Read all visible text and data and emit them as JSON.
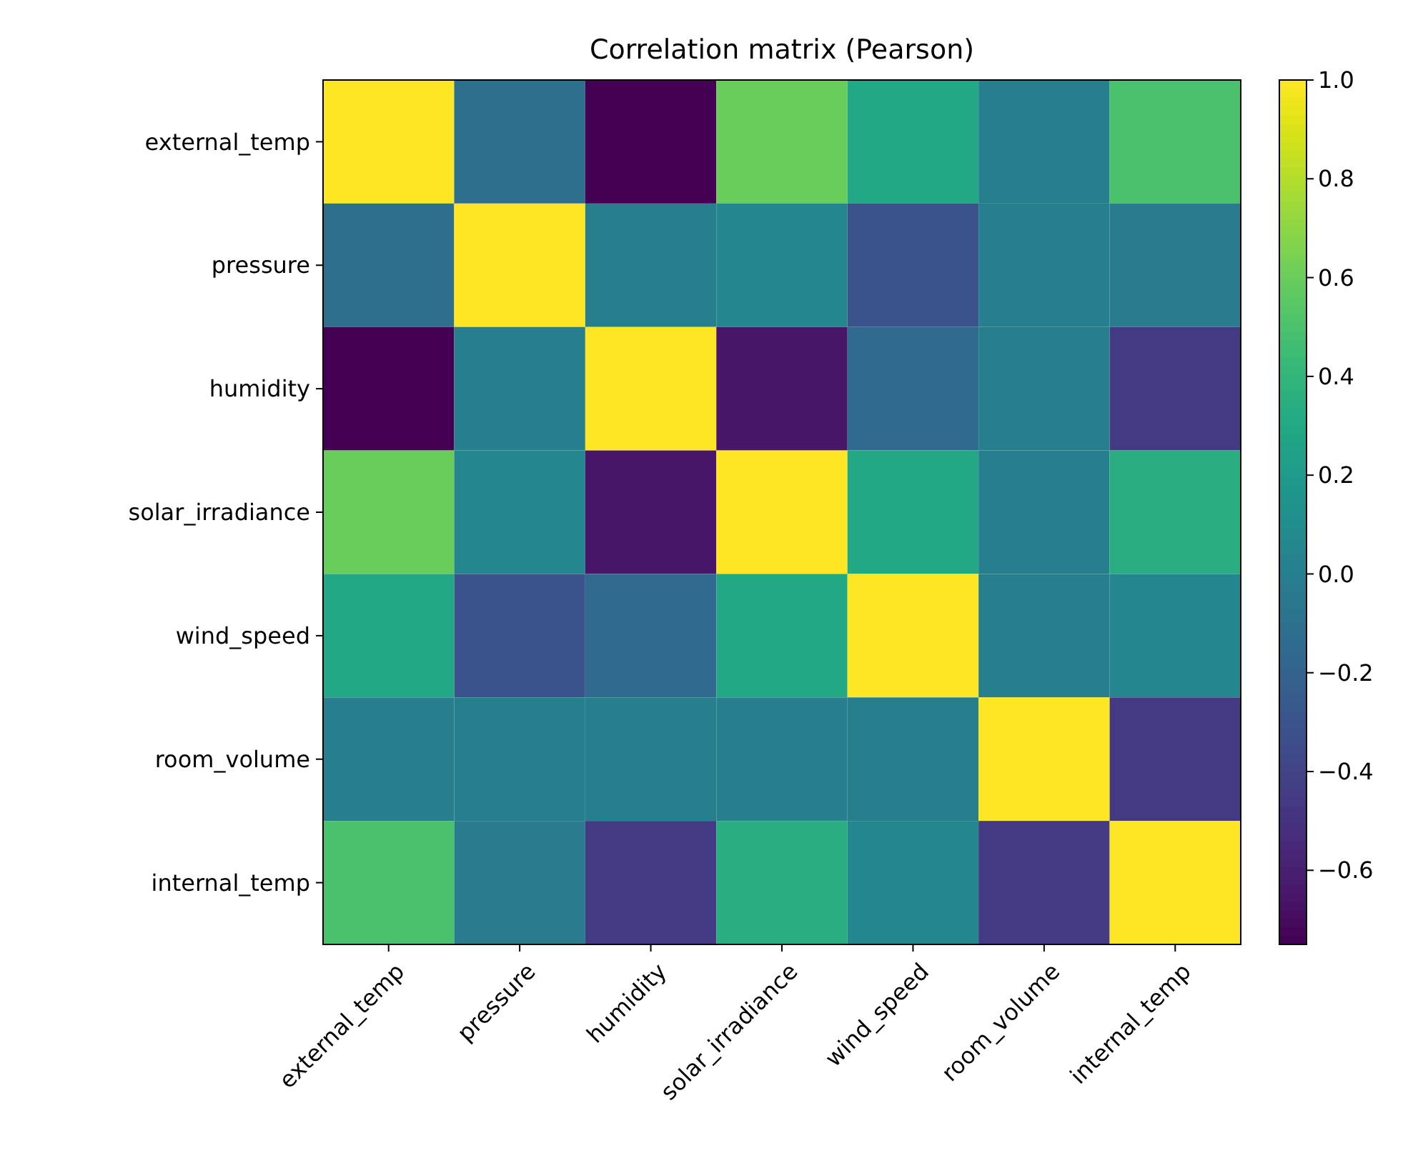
{
  "chart_data": {
    "type": "heatmap",
    "title": "Correlation matrix (Pearson)",
    "categories": [
      "external_temp",
      "pressure",
      "humidity",
      "solar_irradiance",
      "wind_speed",
      "room_volume",
      "internal_temp"
    ],
    "y_categories": [
      "external_temp",
      "pressure",
      "humidity",
      "solar_irradiance",
      "wind_speed",
      "room_volume",
      "internal_temp"
    ],
    "cells": [
      [
        1.0,
        -0.12,
        -0.75,
        0.6,
        0.3,
        0.0,
        0.5
      ],
      [
        -0.12,
        1.0,
        0.0,
        0.05,
        -0.3,
        0.0,
        -0.02
      ],
      [
        -0.75,
        0.0,
        1.0,
        -0.65,
        -0.15,
        0.0,
        -0.45
      ],
      [
        0.6,
        0.05,
        -0.65,
        1.0,
        0.3,
        0.0,
        0.35
      ],
      [
        0.3,
        -0.3,
        -0.15,
        0.3,
        1.0,
        0.0,
        0.05
      ],
      [
        0.0,
        0.0,
        0.0,
        0.0,
        0.0,
        1.0,
        -0.45
      ],
      [
        0.5,
        -0.02,
        -0.45,
        0.35,
        0.05,
        -0.45,
        1.0
      ]
    ],
    "clim": [
      -0.75,
      1.0
    ],
    "cticks": [
      {
        "value": 1.0,
        "label": "1.0"
      },
      {
        "value": 0.8,
        "label": "0.8"
      },
      {
        "value": 0.6,
        "label": "0.6"
      },
      {
        "value": 0.4,
        "label": "0.4"
      },
      {
        "value": 0.2,
        "label": "0.2"
      },
      {
        "value": 0.0,
        "label": "0.0"
      },
      {
        "value": -0.2,
        "label": "−0.2"
      },
      {
        "value": -0.4,
        "label": "−0.4"
      },
      {
        "value": -0.6,
        "label": "−0.6"
      }
    ]
  }
}
